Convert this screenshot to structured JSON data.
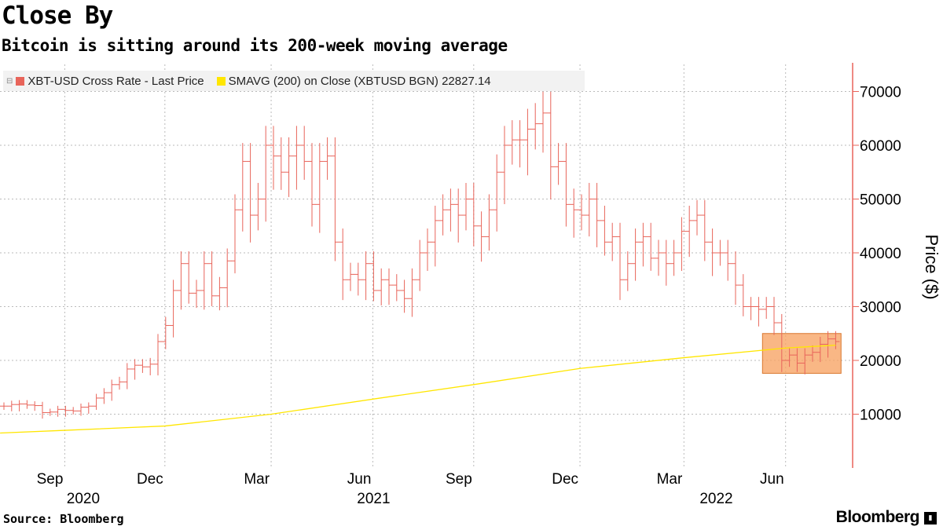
{
  "chart_data": {
    "type": "bar",
    "subtype": "ohlc-weekly",
    "title": "Close By",
    "subtitle": "Bitcoin is sitting around its 200-week moving average",
    "ylabel": "Price ($)",
    "ylim": [
      0,
      75000
    ],
    "yticks": [
      10000,
      20000,
      30000,
      40000,
      50000,
      60000,
      70000
    ],
    "grid": true,
    "legend_position": "top-left",
    "legend": [
      {
        "name": "XBT-USD Cross Rate - Last Price",
        "color": "#e8645a"
      },
      {
        "name": "SMAVG (200)  on Close (XBTUSD BGN) 22827.14",
        "color": "#ffe600"
      }
    ],
    "xticks": [
      {
        "label": "Sep",
        "week": 7.9
      },
      {
        "label": "Dec",
        "week": 20.9
      },
      {
        "label": "Mar",
        "week": 34.7
      },
      {
        "label": "Jun",
        "week": 47.9
      },
      {
        "label": "Sep",
        "week": 61
      },
      {
        "label": "Dec",
        "week": 74.8
      },
      {
        "label": "Mar",
        "week": 88.3
      },
      {
        "label": "Jun",
        "week": 101.5
      }
    ],
    "years": [
      {
        "label": "2020",
        "week": 10.3
      },
      {
        "label": "2021",
        "week": 48
      },
      {
        "label": "2022",
        "week": 92.5
      }
    ],
    "wick_pct": 0.06,
    "close": [
      11500,
      11800,
      11900,
      11700,
      11600,
      10300,
      10400,
      10900,
      10700,
      10600,
      11300,
      11500,
      13000,
      14000,
      15500,
      16000,
      18400,
      19100,
      18800,
      19300,
      23500,
      26500,
      33000,
      38000,
      32500,
      33000,
      38000,
      32000,
      33500,
      38500,
      48000,
      57000,
      47000,
      50000,
      60000,
      58000,
      55000,
      58000,
      60000,
      57000,
      49000,
      57000,
      58000,
      42000,
      35000,
      36000,
      35000,
      38000,
      33000,
      35000,
      34000,
      33000,
      31500,
      35000,
      40000,
      42000,
      46000,
      48000,
      49000,
      47000,
      50000,
      45000,
      43000,
      48000,
      55000,
      60000,
      61000,
      61000,
      63000,
      64000,
      66000,
      56000,
      57000,
      49000,
      48000,
      47000,
      50000,
      46000,
      42000,
      43000,
      35000,
      38000,
      42000,
      43000,
      39000,
      40000,
      38000,
      40000,
      44000,
      46000,
      47000,
      42000,
      40000,
      40000,
      38000,
      34000,
      30000,
      30000,
      29500,
      30000,
      27000,
      20000,
      21000,
      19500,
      21000,
      21500,
      23000,
      24000,
      23500
    ],
    "sma": [
      {
        "week": -0.5,
        "v": 6500
      },
      {
        "week": 7.9,
        "v": 7000
      },
      {
        "week": 20.9,
        "v": 7800
      },
      {
        "week": 34.7,
        "v": 10000
      },
      {
        "week": 47.9,
        "v": 12800
      },
      {
        "week": 61,
        "v": 15500
      },
      {
        "week": 74.8,
        "v": 18500
      },
      {
        "week": 88.3,
        "v": 20500
      },
      {
        "week": 101.5,
        "v": 22300
      },
      {
        "week": 108,
        "v": 22827.14
      }
    ],
    "highlight": {
      "week_from": 98.5,
      "week_to": 108.7,
      "low": 17600,
      "high": 25000
    }
  },
  "source": "Source: Bloomberg",
  "brand": "Bloomberg"
}
